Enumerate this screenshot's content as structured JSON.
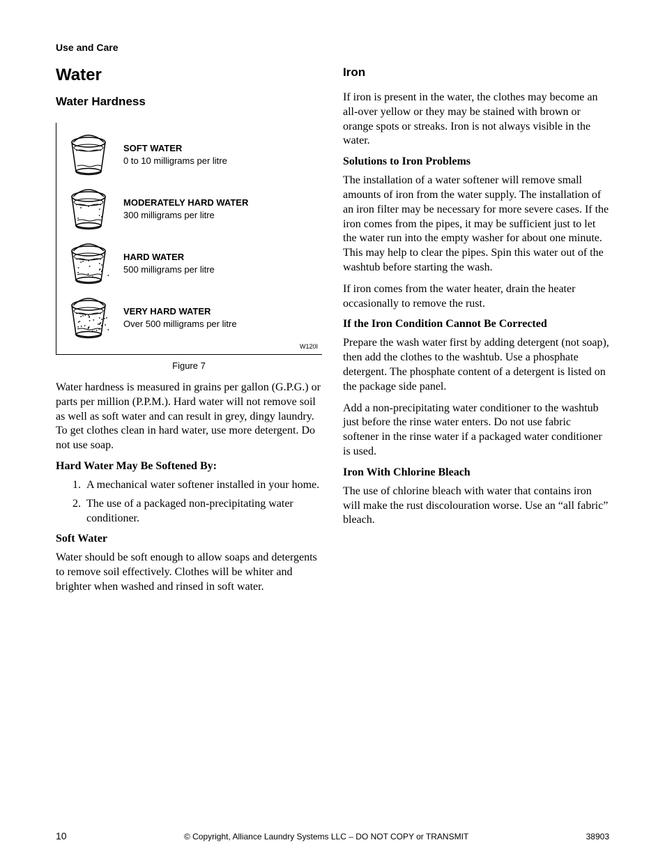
{
  "header": {
    "section": "Use and Care"
  },
  "left": {
    "title": "Water",
    "subtitle": "Water Hardness",
    "hardness": [
      {
        "title": "SOFT WATER",
        "desc": "0 to 10 milligrams per litre",
        "dots": 0
      },
      {
        "title": "MODERATELY HARD WATER",
        "desc": "300 milligrams per litre",
        "dots": 6
      },
      {
        "title": "HARD WATER",
        "desc": "500 milligrams per litre",
        "dots": 14
      },
      {
        "title": "VERY HARD WATER",
        "desc": "Over 500 milligrams per litre",
        "dots": 30
      }
    ],
    "fig_code": "W120I",
    "fig_caption": "Figure 7",
    "para1": "Water hardness is measured in grains per gallon (G.P.G.) or parts per million (P.P.M.). Hard water will not remove soil as well as soft water and can result in grey, dingy laundry. To get clothes clean in hard water, use more detergent. Do not use soap.",
    "h_soften": "Hard Water May Be Softened By:",
    "soften_list": [
      "A mechanical water softener installed in your home.",
      "The use of a packaged non-precipitating water conditioner."
    ],
    "h_soft": "Soft Water",
    "soft_para": "Water should be soft enough to allow soaps and detergents to remove soil effectively. Clothes will be whiter and brighter when washed and rinsed in soft water."
  },
  "right": {
    "title": "Iron",
    "para1": "If iron is present in the water, the clothes may become an all-over yellow or they may be stained with brown or orange spots or streaks. Iron is not always visible in the water.",
    "h_solutions": "Solutions to Iron Problems",
    "para2": "The installation of a water softener will remove small amounts of iron from the water supply. The installation of an iron filter may be necessary for more severe cases. If the iron comes from the pipes, it may be sufficient just to let the water run into the empty washer for about one minute. This may help to clear the pipes. Spin this water out of the washtub before starting the wash.",
    "para3": "If iron comes from the water heater, drain the heater occasionally to remove the rust.",
    "h_cannot": "If the Iron Condition Cannot Be Corrected",
    "para4": "Prepare the wash water first by adding detergent (not soap), then add the clothes to the washtub. Use a phosphate detergent. The phosphate content of a detergent is listed on the package side panel.",
    "para5": "Add a non-precipitating water conditioner to the washtub just before the rinse water enters. Do not use fabric softener in the rinse water if a packaged water conditioner is used.",
    "h_bleach": "Iron With Chlorine Bleach",
    "para6": "The use of chlorine bleach with water that contains iron will make the rust discolouration worse. Use an “all fabric” bleach."
  },
  "footer": {
    "page": "10",
    "copyright": "© Copyright, Alliance Laundry Systems LLC – DO NOT COPY or TRANSMIT",
    "doc": "38903"
  }
}
